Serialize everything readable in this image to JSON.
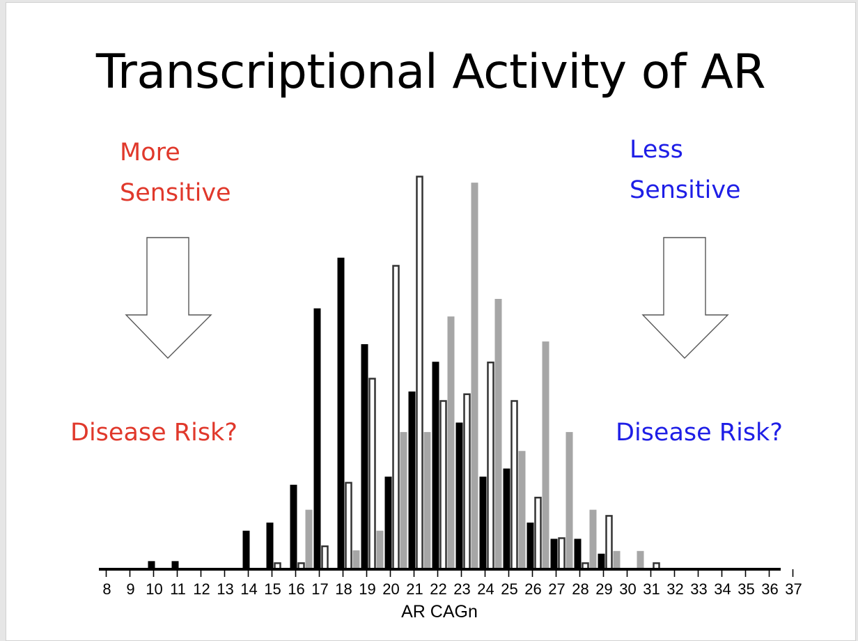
{
  "slide": {
    "title": "Transcriptional Activity of AR",
    "left_note": {
      "line1": "More",
      "line2": "Sensitive",
      "risk": "Disease Risk?",
      "color": "#e0382b"
    },
    "right_note": {
      "line1": "Less",
      "line2": "Sensitive",
      "risk": "Disease Risk?",
      "color": "#1e1ee6"
    }
  },
  "chart_data": {
    "type": "bar",
    "xlabel": "AR CAGn",
    "ylabel": "",
    "categories": [
      "8",
      "9",
      "10",
      "11",
      "12",
      "13",
      "14",
      "15",
      "16",
      "17",
      "18",
      "19",
      "20",
      "21",
      "22",
      "23",
      "24",
      "25",
      "26",
      "27",
      "28",
      "29",
      "30",
      "31",
      "32",
      "33",
      "34",
      "35",
      "36",
      "37"
    ],
    "grid": false,
    "legend": "none",
    "series": [
      {
        "style": "solid",
        "color": "#000000",
        "values": [
          0,
          0,
          0.12,
          0.12,
          0,
          0,
          0.57,
          0.69,
          1.25,
          3.86,
          4.61,
          3.33,
          1.37,
          2.63,
          3.07,
          2.17,
          1.37,
          1.49,
          0.69,
          0.45,
          0.45,
          0.23,
          0,
          0,
          0,
          0,
          0,
          0,
          0,
          0
        ]
      },
      {
        "style": "outline",
        "color": "#333333",
        "values": [
          0,
          0,
          0,
          0,
          0,
          0,
          0,
          0.1,
          0.1,
          0.35,
          1.29,
          2.83,
          4.5,
          5.82,
          2.5,
          2.6,
          3.07,
          2.5,
          1.07,
          0.47,
          0.1,
          0.8,
          0,
          0.1,
          0,
          0,
          0,
          0,
          0,
          0
        ]
      },
      {
        "style": "gray",
        "color": "#a6a6a6",
        "values": [
          0,
          0,
          0,
          0,
          0,
          0,
          0,
          0,
          0.88,
          0,
          0.28,
          0.57,
          2.03,
          2.03,
          3.74,
          5.72,
          4.0,
          1.75,
          3.37,
          2.03,
          0.88,
          0.27,
          0.27,
          0,
          0,
          0,
          0,
          0,
          0,
          0
        ]
      }
    ],
    "ylim": [
      0,
      6
    ]
  }
}
